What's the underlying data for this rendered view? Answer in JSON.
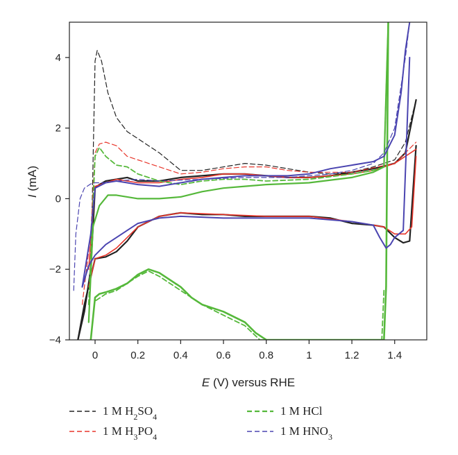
{
  "chart_data": {
    "type": "line",
    "title": "",
    "xlabel": "E (V) versus RHE",
    "xlabel_italic": "E",
    "xlabel_rest": " (V) versus RHE",
    "ylabel": "I (mA)",
    "ylabel_italic": "I",
    "ylabel_rest": " (mA)",
    "xlim": [
      -0.12,
      1.55
    ],
    "ylim": [
      -4,
      5
    ],
    "xticks": [
      0,
      0.2,
      0.4,
      0.6,
      0.8,
      1,
      1.2,
      1.4
    ],
    "xtick_labels": [
      "0",
      "0.2",
      "0.4",
      "0.6",
      "0.8",
      "1",
      "1.2",
      "1.4"
    ],
    "yticks": [
      -4,
      -2,
      0,
      2,
      4
    ],
    "ytick_labels": [
      "−4",
      "−2",
      "0",
      "2",
      "4"
    ],
    "grid": false,
    "legend_placement": "bottom",
    "legend": [
      {
        "pre": "1 M H",
        "sub1": "2",
        "mid": "SO",
        "sub2": "4",
        "color": "#222222",
        "style": "dashed"
      },
      {
        "pre": "1 M HCl",
        "sub1": "",
        "mid": "",
        "sub2": "",
        "color": "#55b83a",
        "style": "dashed"
      },
      {
        "pre": "1 M H",
        "sub1": "3",
        "mid": "PO",
        "sub2": "4",
        "color": "#e8352a",
        "style": "dashed"
      },
      {
        "pre": "1 M HNO",
        "sub1": "3",
        "mid": "",
        "sub2": "",
        "color": "#4a44b0",
        "style": "dashed"
      }
    ],
    "series": [
      {
        "color": "#222222",
        "style": "dashed",
        "width": 1.2,
        "x": [
          -0.02,
          0.0,
          0.01,
          0.03,
          0.06,
          0.1,
          0.15,
          0.2,
          0.3,
          0.4,
          0.5,
          0.6,
          0.7,
          0.8,
          0.9,
          1.0,
          1.1,
          1.2,
          1.3,
          1.4,
          1.45,
          1.5
        ],
        "y": [
          -2.2,
          3.9,
          4.2,
          3.9,
          3.0,
          2.3,
          1.9,
          1.7,
          1.3,
          0.8,
          0.8,
          0.9,
          1.0,
          0.95,
          0.85,
          0.75,
          0.7,
          0.75,
          0.9,
          1.1,
          1.6,
          2.8
        ]
      },
      {
        "color": "#222222",
        "style": "solid",
        "width": 2.2,
        "x": [
          -0.08,
          -0.05,
          -0.02,
          0.0,
          0.02,
          0.05,
          0.1,
          0.15,
          0.2,
          0.3,
          0.4,
          0.5,
          0.6,
          0.7,
          0.8,
          0.9,
          1.0,
          1.1,
          1.2,
          1.3,
          1.4,
          1.45,
          1.5
        ],
        "y": [
          -4.0,
          -3.2,
          -2.0,
          0.3,
          0.4,
          0.5,
          0.55,
          0.6,
          0.5,
          0.5,
          0.6,
          0.65,
          0.7,
          0.7,
          0.65,
          0.6,
          0.6,
          0.65,
          0.75,
          0.85,
          1.0,
          1.3,
          2.8
        ]
      },
      {
        "color": "#222222",
        "style": "solid",
        "width": 2.2,
        "x": [
          1.5,
          1.47,
          1.44,
          1.4,
          1.35,
          1.3,
          1.2,
          1.1,
          1.0,
          0.9,
          0.8,
          0.7,
          0.6,
          0.5,
          0.4,
          0.35,
          0.3,
          0.2,
          0.15,
          0.1,
          0.05,
          0.0,
          -0.05,
          -0.08
        ],
        "y": [
          1.5,
          -1.2,
          -1.25,
          -1.1,
          -0.8,
          -0.75,
          -0.7,
          -0.55,
          -0.5,
          -0.5,
          -0.5,
          -0.5,
          -0.45,
          -0.45,
          -0.4,
          -0.45,
          -0.5,
          -0.8,
          -1.2,
          -1.5,
          -1.65,
          -1.7,
          -3.0,
          -4.0
        ]
      },
      {
        "color": "#e8352a",
        "style": "dashed",
        "width": 1.2,
        "x": [
          -0.06,
          -0.02,
          0.0,
          0.02,
          0.05,
          0.1,
          0.15,
          0.2,
          0.3,
          0.4,
          0.5,
          0.6,
          0.7,
          0.8,
          0.9,
          1.0,
          1.2,
          1.4,
          1.5
        ],
        "y": [
          -3.0,
          -1.0,
          1.3,
          1.55,
          1.6,
          1.5,
          1.2,
          1.1,
          0.9,
          0.7,
          0.75,
          0.85,
          0.9,
          0.9,
          0.8,
          0.75,
          0.75,
          1.0,
          1.6
        ]
      },
      {
        "color": "#e8352a",
        "style": "solid",
        "width": 1.6,
        "x": [
          -0.03,
          0.0,
          0.05,
          0.1,
          0.15,
          0.2,
          0.3,
          0.4,
          0.5,
          0.6,
          0.7,
          0.8,
          0.9,
          1.0,
          1.2,
          1.3,
          1.4,
          1.5
        ],
        "y": [
          -2.0,
          0.35,
          0.45,
          0.55,
          0.5,
          0.45,
          0.45,
          0.55,
          0.6,
          0.7,
          0.7,
          0.65,
          0.6,
          0.6,
          0.7,
          0.8,
          1.0,
          1.4
        ]
      },
      {
        "color": "#e8352a",
        "style": "solid",
        "width": 1.6,
        "x": [
          1.5,
          1.48,
          1.45,
          1.4,
          1.35,
          1.3,
          1.2,
          1.0,
          0.8,
          0.6,
          0.4,
          0.3,
          0.2,
          0.1,
          0.05,
          0.0,
          -0.03
        ],
        "y": [
          1.2,
          -0.8,
          -1.0,
          -1.0,
          -0.8,
          -0.75,
          -0.65,
          -0.5,
          -0.5,
          -0.45,
          -0.4,
          -0.5,
          -0.8,
          -1.4,
          -1.6,
          -1.7,
          -2.5
        ]
      },
      {
        "color": "#55b83a",
        "style": "dashed",
        "width": 1.8,
        "x": [
          -0.03,
          0.0,
          0.02,
          0.05,
          0.1,
          0.15,
          0.2,
          0.3,
          0.4,
          0.5,
          0.6,
          0.7,
          0.8,
          1.0,
          1.2,
          1.3,
          1.35,
          1.36,
          1.37
        ],
        "y": [
          -3.0,
          1.2,
          1.45,
          1.2,
          0.95,
          0.9,
          0.7,
          0.5,
          0.4,
          0.5,
          0.55,
          0.55,
          0.5,
          0.55,
          0.7,
          0.8,
          0.9,
          3.0,
          5.0
        ]
      },
      {
        "color": "#55b83a",
        "style": "solid",
        "width": 2.2,
        "x": [
          -0.03,
          -0.01,
          0.02,
          0.06,
          0.1,
          0.15,
          0.2,
          0.3,
          0.4,
          0.5,
          0.6,
          0.7,
          0.8,
          1.0,
          1.2,
          1.3,
          1.35,
          1.36,
          1.37
        ],
        "y": [
          -3.5,
          -0.8,
          -0.2,
          0.1,
          0.1,
          0.05,
          0.0,
          0.0,
          0.05,
          0.2,
          0.3,
          0.35,
          0.4,
          0.45,
          0.6,
          0.75,
          0.9,
          3.0,
          5.0
        ]
      },
      {
        "color": "#55b83a",
        "style": "solid",
        "width": 2.6,
        "x": [
          1.37,
          1.36,
          1.35,
          1.34,
          1.2,
          1.0,
          0.8,
          0.75,
          0.7,
          0.6,
          0.5,
          0.45,
          0.4,
          0.3,
          0.25,
          0.2,
          0.15,
          0.1,
          0.05,
          0.02,
          0.0,
          -0.02
        ],
        "y": [
          5.0,
          -2.5,
          -4.0,
          -4.0,
          -4.0,
          -4.0,
          -4.0,
          -3.8,
          -3.5,
          -3.2,
          -3.0,
          -2.8,
          -2.5,
          -2.1,
          -2.0,
          -2.15,
          -2.4,
          -2.55,
          -2.65,
          -2.7,
          -2.8,
          -4.0
        ]
      },
      {
        "color": "#55b83a",
        "style": "dashed",
        "width": 1.8,
        "x": [
          1.35,
          1.34,
          1.2,
          1.0,
          0.77,
          0.7,
          0.6,
          0.5,
          0.4,
          0.3,
          0.25,
          0.2,
          0.1,
          0.05,
          0.0
        ],
        "y": [
          -2.6,
          -4.0,
          -4.0,
          -4.0,
          -4.0,
          -3.6,
          -3.3,
          -3.0,
          -2.6,
          -2.2,
          -2.05,
          -2.2,
          -2.6,
          -2.7,
          -2.9
        ]
      },
      {
        "color": "#4a44b0",
        "style": "dashed",
        "width": 1.2,
        "x": [
          -0.1,
          -0.09,
          -0.07,
          -0.05,
          -0.02,
          0.0,
          0.05,
          0.1,
          0.2,
          0.3,
          0.5,
          0.7,
          0.9,
          1.1,
          1.2,
          1.3,
          1.35,
          1.4,
          1.45,
          1.47
        ],
        "y": [
          -2.6,
          -1.0,
          0.0,
          0.3,
          0.42,
          0.45,
          0.45,
          0.5,
          0.55,
          0.5,
          0.55,
          0.6,
          0.6,
          0.7,
          0.8,
          1.0,
          1.3,
          2.0,
          4.0,
          5.0
        ]
      },
      {
        "color": "#4a44b0",
        "style": "solid",
        "width": 2.0,
        "x": [
          -0.06,
          -0.02,
          0.0,
          0.05,
          0.1,
          0.15,
          0.2,
          0.3,
          0.4,
          0.5,
          0.6,
          0.7,
          0.8,
          0.9,
          1.0,
          1.1,
          1.2,
          1.3,
          1.35,
          1.4,
          1.43,
          1.45,
          1.47
        ],
        "y": [
          -2.5,
          -1.0,
          0.3,
          0.45,
          0.5,
          0.45,
          0.4,
          0.35,
          0.45,
          0.55,
          0.6,
          0.65,
          0.65,
          0.65,
          0.7,
          0.85,
          0.95,
          1.05,
          1.2,
          1.8,
          3.0,
          4.2,
          5.0
        ]
      },
      {
        "color": "#4a44b0",
        "style": "solid",
        "width": 2.0,
        "x": [
          1.47,
          1.44,
          1.42,
          1.4,
          1.38,
          1.36,
          1.33,
          1.3,
          1.2,
          1.0,
          0.8,
          0.6,
          0.4,
          0.3,
          0.2,
          0.15,
          0.1,
          0.05,
          0.0,
          -0.03,
          -0.06
        ],
        "y": [
          4.0,
          -0.9,
          -1.0,
          -1.1,
          -1.3,
          -1.4,
          -1.1,
          -0.75,
          -0.65,
          -0.55,
          -0.55,
          -0.55,
          -0.5,
          -0.55,
          -0.7,
          -0.9,
          -1.1,
          -1.3,
          -1.6,
          -1.9,
          -2.5
        ]
      }
    ]
  }
}
